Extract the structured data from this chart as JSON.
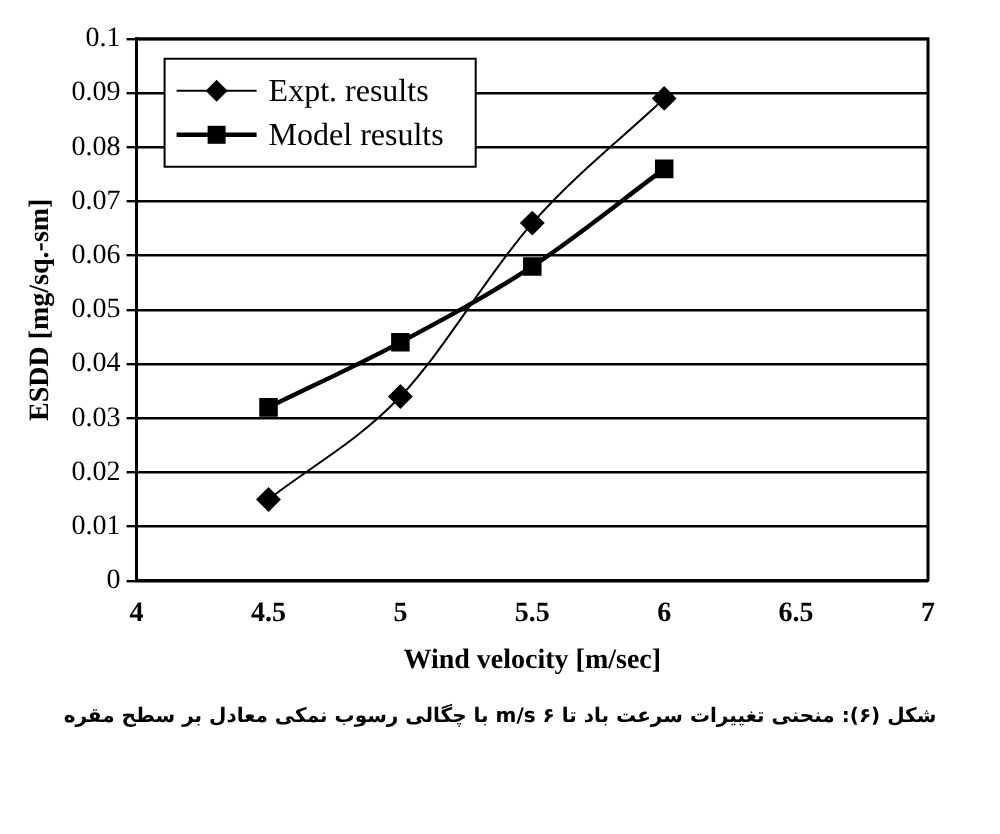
{
  "chart_data": {
    "type": "line",
    "xlabel": "Wind velocity [m/sec]",
    "ylabel": "ESDD [mg/sq.-sm]",
    "x": [
      4.5,
      5,
      5.5,
      6
    ],
    "series": [
      {
        "name": "Expt. results",
        "color": "#000000",
        "values": [
          0.015,
          0.034,
          0.066,
          0.089
        ],
        "marker": "diamond"
      },
      {
        "name": "Model results",
        "color": "#000000",
        "values": [
          0.032,
          0.044,
          0.058,
          0.076
        ],
        "marker": "square"
      }
    ],
    "xlim": [
      4,
      7
    ],
    "xticks": [
      4,
      4.5,
      5,
      5.5,
      6,
      6.5,
      7
    ],
    "ylim": [
      0,
      0.1
    ],
    "yticks": [
      0,
      0.01,
      0.02,
      0.03,
      0.04,
      0.05,
      0.06,
      0.07,
      0.08,
      0.09,
      0.1
    ],
    "grid": "y",
    "legend": "top left",
    "annotations": [
      "شکل (۶): منحنی تغییرات سرعت باد تا m/s ۶ با چگالی رسوب نمکی معادل بر سطح مقره"
    ]
  }
}
